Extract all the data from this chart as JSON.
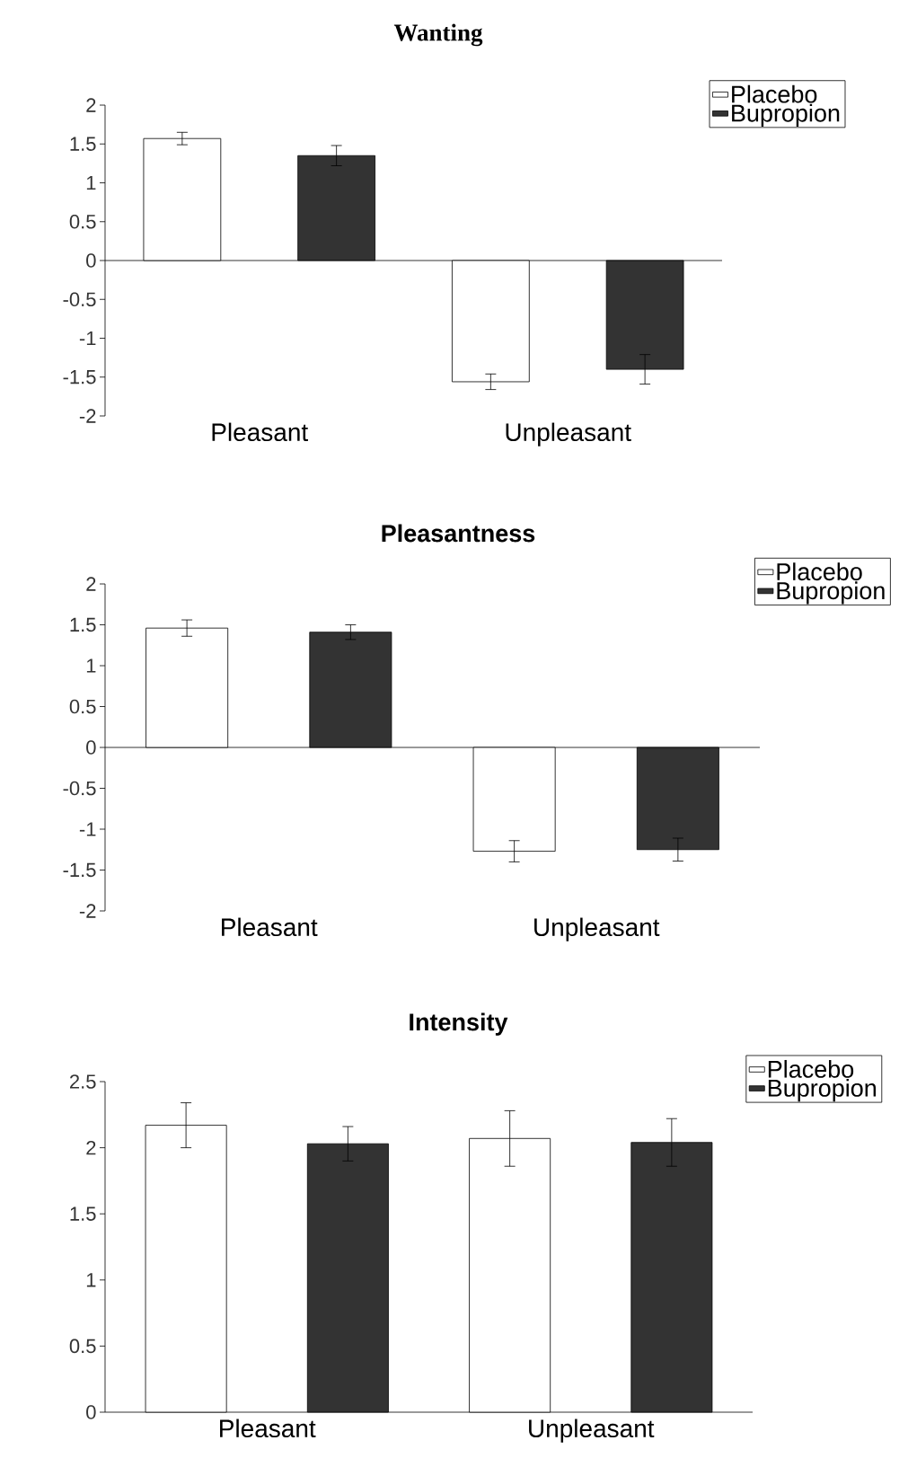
{
  "chart_data": [
    {
      "type": "bar",
      "title": "Wanting",
      "categories": [
        "Pleasant",
        "Unpleasant"
      ],
      "series": [
        {
          "name": "Placebo",
          "color": "#ffffff",
          "values": [
            1.57,
            -1.56
          ],
          "errors": [
            0.08,
            0.1
          ]
        },
        {
          "name": "Bupropion",
          "color": "#333333",
          "values": [
            1.35,
            -1.4
          ],
          "errors": [
            0.13,
            0.19
          ]
        }
      ],
      "ylim": [
        -2,
        2
      ],
      "yticks": [
        -2,
        -1.5,
        -1,
        -0.5,
        0,
        0.5,
        1,
        1.5,
        2
      ],
      "legend": "top right"
    },
    {
      "type": "bar",
      "title": "Pleasantness",
      "categories": [
        "Pleasant",
        "Unpleasant"
      ],
      "series": [
        {
          "name": "Placebo",
          "color": "#ffffff",
          "values": [
            1.46,
            -1.27
          ],
          "errors": [
            0.1,
            0.13
          ]
        },
        {
          "name": "Bupropion",
          "color": "#333333",
          "values": [
            1.41,
            -1.25
          ],
          "errors": [
            0.09,
            0.14
          ]
        }
      ],
      "ylim": [
        -2,
        2
      ],
      "yticks": [
        -2,
        -1.5,
        -1,
        -0.5,
        0,
        0.5,
        1,
        1.5,
        2
      ],
      "legend": "top right"
    },
    {
      "type": "bar",
      "title": "Intensity",
      "categories": [
        "Pleasant",
        "Unpleasant"
      ],
      "series": [
        {
          "name": "Placebo",
          "color": "#ffffff",
          "values": [
            2.17,
            2.07
          ],
          "errors": [
            0.17,
            0.21
          ]
        },
        {
          "name": "Bupropion",
          "color": "#333333",
          "values": [
            2.03,
            2.04
          ],
          "errors": [
            0.13,
            0.18
          ]
        }
      ],
      "ylim": [
        0,
        2.5
      ],
      "yticks": [
        0,
        0.5,
        1,
        1.5,
        2,
        2.5
      ],
      "legend": "top right"
    }
  ]
}
